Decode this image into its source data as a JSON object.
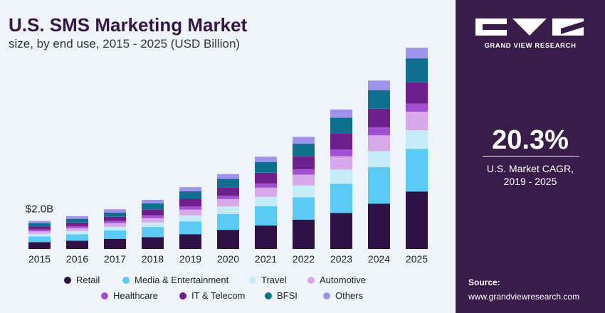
{
  "header": {
    "title": "U.S. SMS Marketing Market",
    "subtitle": "size, by end use, 2015 - 2025 (USD Billion)"
  },
  "side_panel": {
    "brand": "GRAND VIEW RESEARCH",
    "cagr_value": "20.3%",
    "cagr_label_line1": "U.S. Market CAGR,",
    "cagr_label_line2": "2019 - 2025",
    "source_title": "Source:",
    "source_url": "www.grandviewresearch.com"
  },
  "colors": {
    "left_background": "#eef4fa",
    "panel_background": "#3a1c4a"
  },
  "chart_data": {
    "type": "bar",
    "stacked": true,
    "categories": [
      "2015",
      "2016",
      "2017",
      "2018",
      "2019",
      "2020",
      "2021",
      "2022",
      "2023",
      "2024",
      "2025"
    ],
    "annotation": {
      "category": "2015",
      "text": "$2.0B"
    },
    "legend_placement": "bottom",
    "series": [
      {
        "name": "Retail",
        "color": "#2e1145",
        "values": [
          0.49,
          0.58,
          0.72,
          0.84,
          1.05,
          1.36,
          1.67,
          2.08,
          2.55,
          3.22,
          4.08
        ]
      },
      {
        "name": "Media & Entertainment",
        "color": "#5bcbf5",
        "values": [
          0.4,
          0.47,
          0.6,
          0.72,
          0.91,
          1.13,
          1.36,
          1.59,
          2.08,
          2.59,
          3.03
        ]
      },
      {
        "name": "Travel",
        "color": "#c6ecfa",
        "values": [
          0.19,
          0.23,
          0.26,
          0.32,
          0.42,
          0.53,
          0.68,
          0.84,
          1.01,
          1.13,
          1.32
        ]
      },
      {
        "name": "Automotive",
        "color": "#d7a8ea",
        "values": [
          0.19,
          0.21,
          0.26,
          0.32,
          0.42,
          0.53,
          0.64,
          0.76,
          0.94,
          1.13,
          1.32
        ]
      },
      {
        "name": "Healthcare",
        "color": "#a34fd1",
        "values": [
          0.11,
          0.13,
          0.15,
          0.19,
          0.23,
          0.23,
          0.3,
          0.38,
          0.49,
          0.57,
          0.57
        ]
      },
      {
        "name": "IT & Telecom",
        "color": "#6d1f8e",
        "values": [
          0.23,
          0.26,
          0.3,
          0.42,
          0.53,
          0.6,
          0.76,
          0.91,
          1.13,
          1.32,
          1.51
        ]
      },
      {
        "name": "BFSI",
        "color": "#0e6f8f",
        "values": [
          0.23,
          0.26,
          0.3,
          0.42,
          0.53,
          0.6,
          0.76,
          0.91,
          1.13,
          1.32,
          1.7
        ]
      },
      {
        "name": "Others",
        "color": "#9f93ec",
        "values": [
          0.15,
          0.19,
          0.23,
          0.26,
          0.3,
          0.34,
          0.38,
          0.49,
          0.57,
          0.68,
          0.76
        ]
      }
    ]
  }
}
